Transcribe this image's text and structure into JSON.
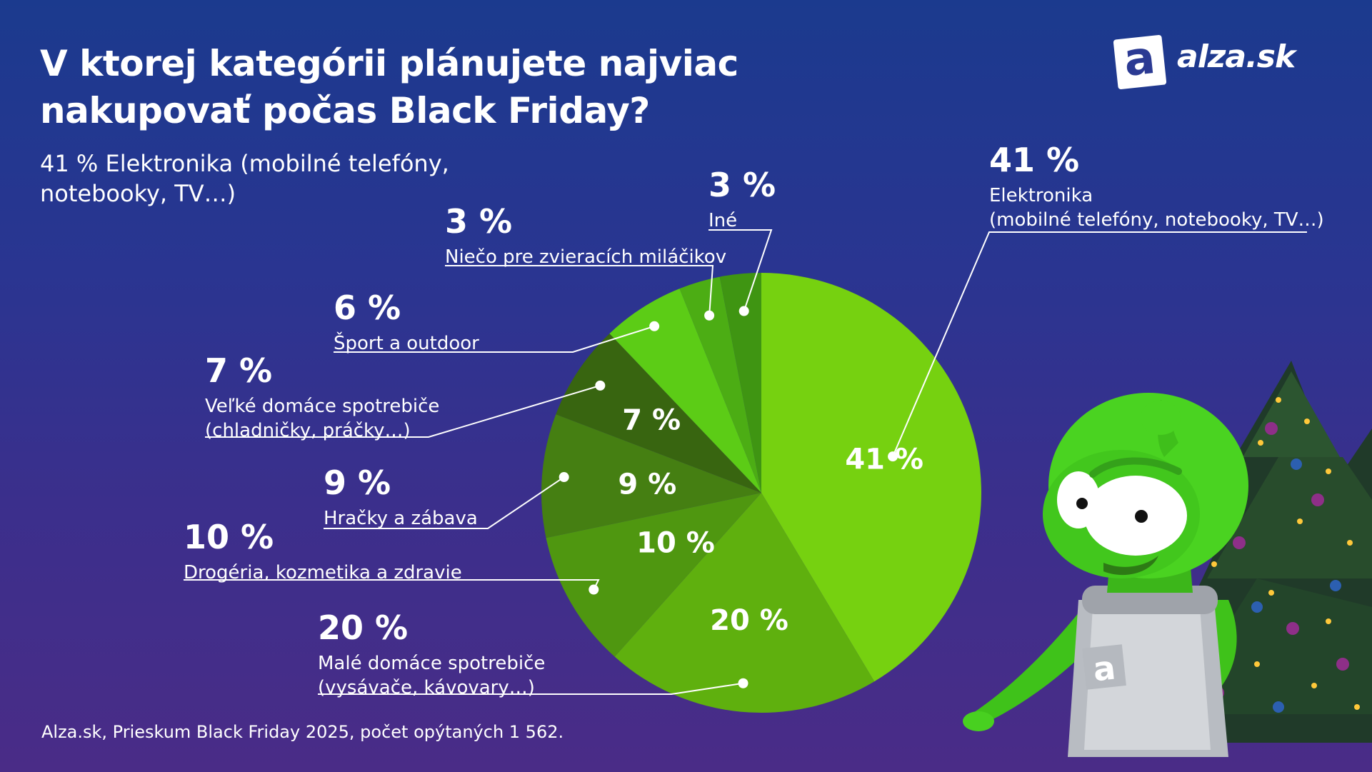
{
  "title": "V ktorej kategórii plánujete najviac nakupovať počas Black Friday?",
  "subtitle": "41 % Elektronika (mobilné telefóny, notebooky, TV…)",
  "source": "Alza.sk, Prieskum Black Friday 2025, počet opýtaných 1 562.",
  "logo": {
    "mark": "a",
    "text": "alza.sk"
  },
  "chart_data": {
    "type": "pie",
    "title": "V ktorej kategórii plánujete najviac nakupovať počas Black Friday?",
    "slices": [
      {
        "value": 41,
        "pct_label": "41 %",
        "label_lines": [
          "Elektronika",
          "(mobilné telefóny, notebooky, TV…)"
        ],
        "color": "#76d110"
      },
      {
        "value": 20,
        "pct_label": "20 %",
        "label_lines": [
          "Malé domáce spotrebiče",
          "(vysávače, kávovary…)"
        ],
        "color": "#5fb00e"
      },
      {
        "value": 10,
        "pct_label": "10 %",
        "label_lines": [
          "Drogéria, kozmetika a zdravie"
        ],
        "color": "#4f9710"
      },
      {
        "value": 9,
        "pct_label": "9 %",
        "label_lines": [
          "Hračky a zábava"
        ],
        "color": "#457f12"
      },
      {
        "value": 7,
        "pct_label": "7 %",
        "label_lines": [
          "Veľké domáce spotrebiče",
          "(chladničky, práčky…)"
        ],
        "color": "#386510"
      },
      {
        "value": 6,
        "pct_label": "6 %",
        "label_lines": [
          "Šport a outdoor"
        ],
        "color": "#5ccc16"
      },
      {
        "value": 3,
        "pct_label": "3 %",
        "label_lines": [
          "Niečo pre zvieracích miláčikov"
        ],
        "color": "#4cad14"
      },
      {
        "value": 3,
        "pct_label": "3 %",
        "label_lines": [
          "Iné"
        ],
        "color": "#3f9512"
      }
    ]
  }
}
